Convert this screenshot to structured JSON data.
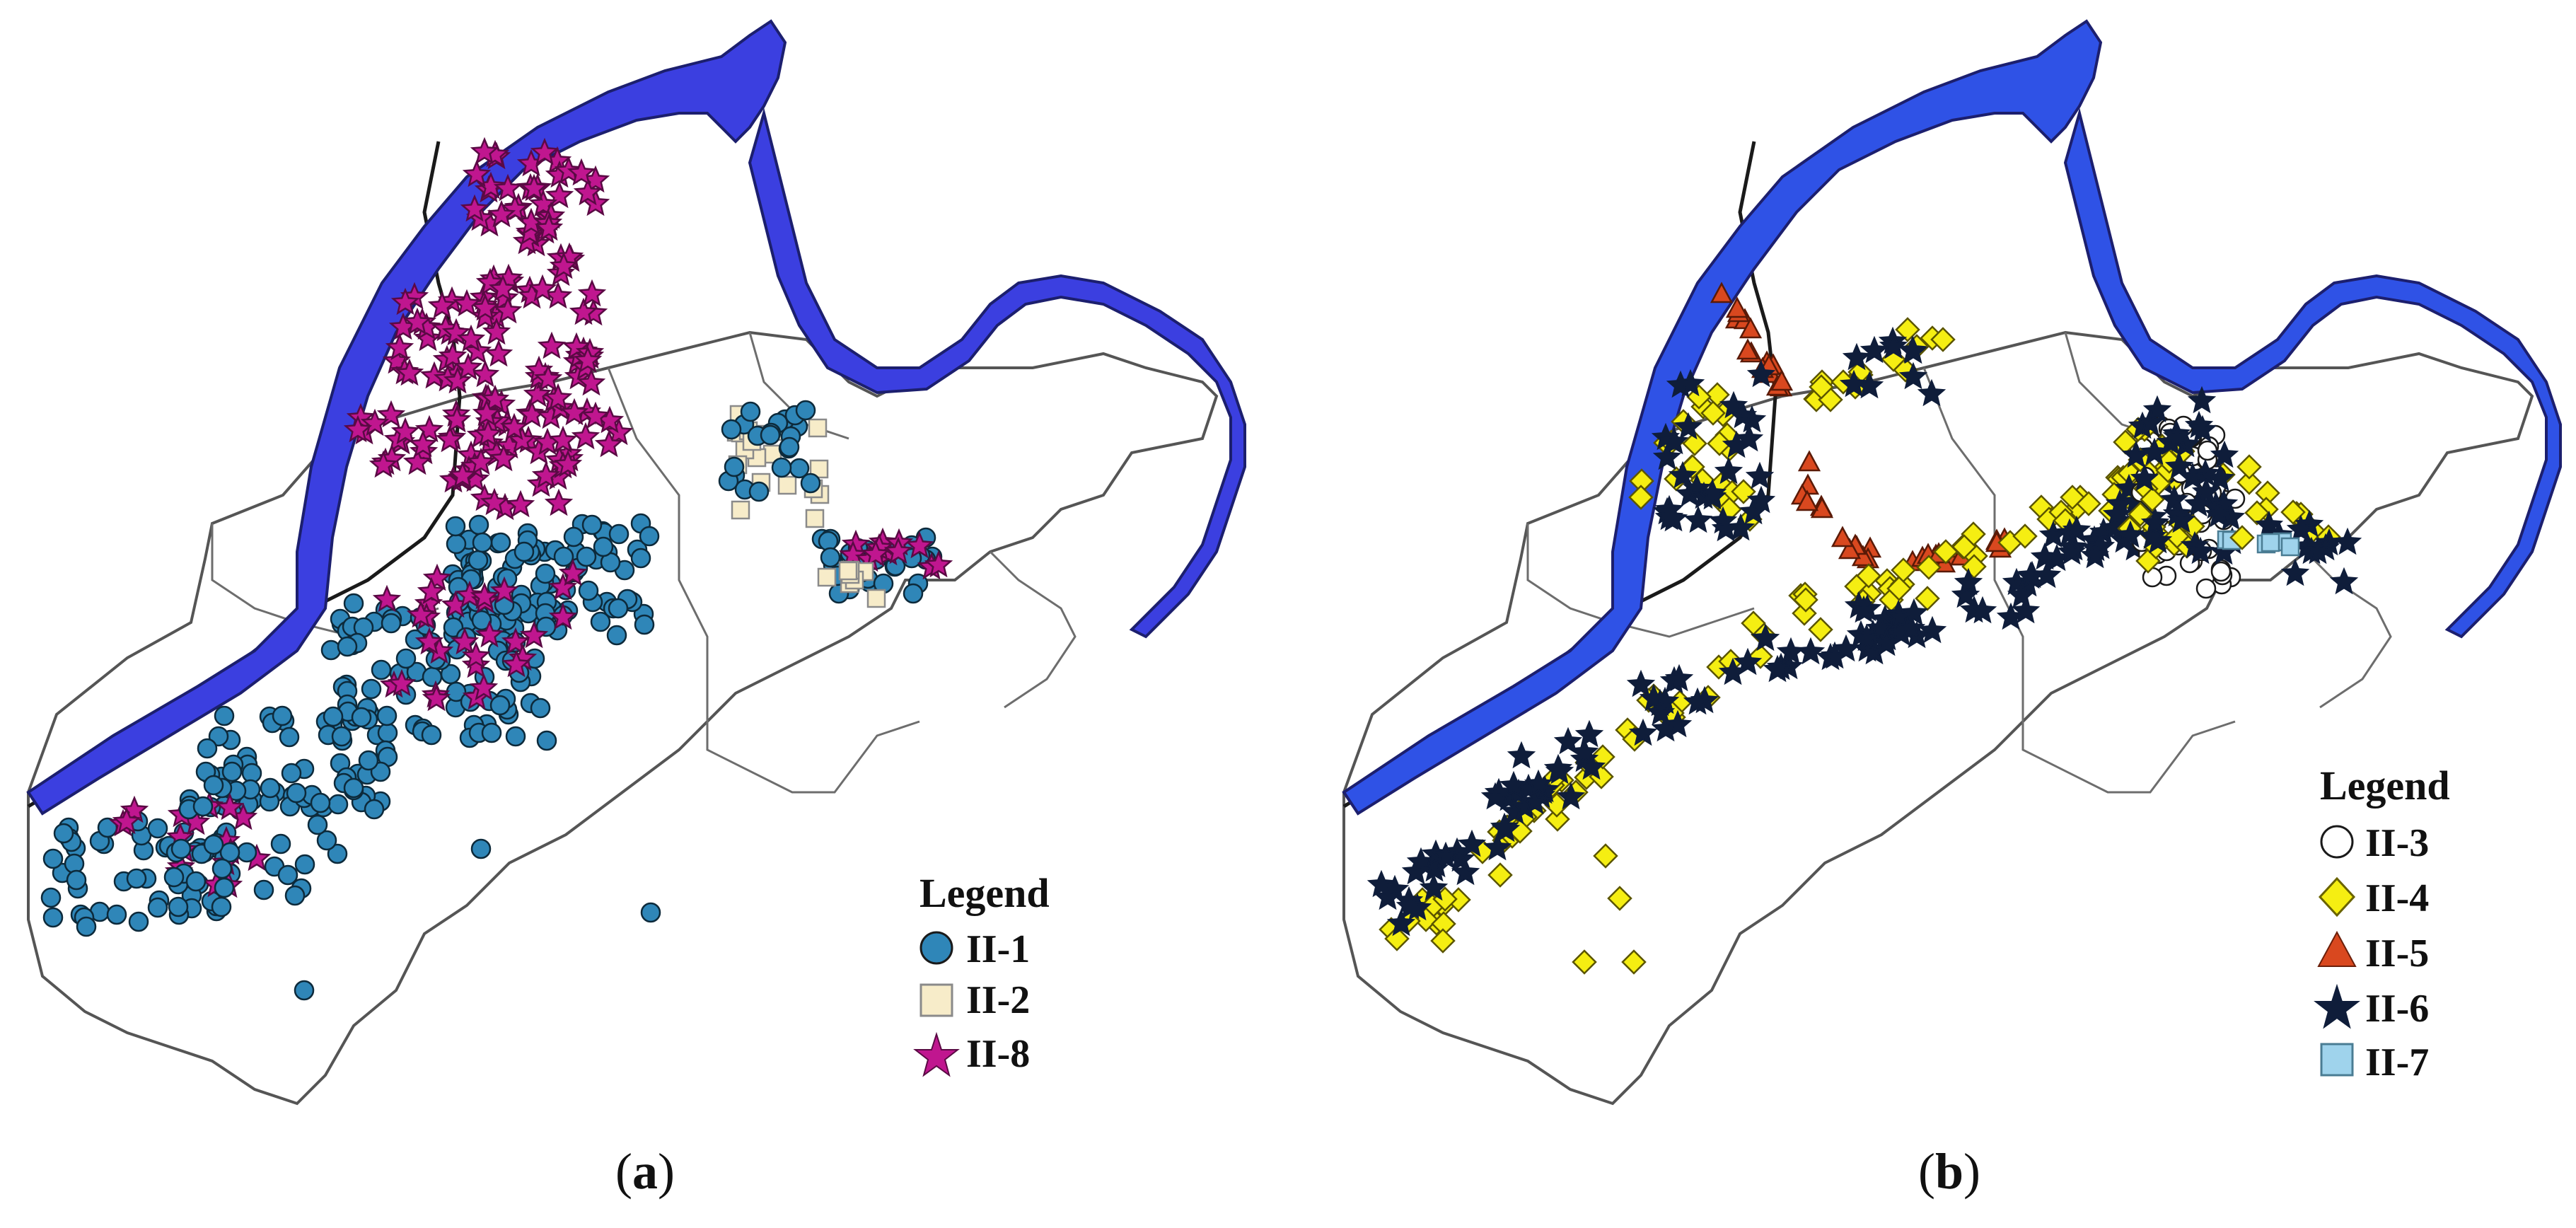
{
  "panels": [
    {
      "id": "a",
      "caption_open": "(",
      "caption_letter": "a",
      "caption_close": ")",
      "legend": {
        "title": "Legend",
        "items": [
          {
            "label": "II-1",
            "symbol": "circle",
            "fill": "#2f86b8"
          },
          {
            "label": "II-2",
            "symbol": "square",
            "fill": "#f7ecc9"
          },
          {
            "label": "II-8",
            "symbol": "star",
            "fill": "#c0168f"
          }
        ]
      }
    },
    {
      "id": "b",
      "caption_open": "(",
      "caption_letter": "b",
      "caption_close": ")",
      "legend": {
        "title": "Legend",
        "items": [
          {
            "label": "II-3",
            "symbol": "circle",
            "fill": "#ffffff"
          },
          {
            "label": "II-4",
            "symbol": "diamond",
            "fill": "#f5ee12"
          },
          {
            "label": "II-5",
            "symbol": "triangle",
            "fill": "#d9481f"
          },
          {
            "label": "II-6",
            "symbol": "star",
            "fill": "#0f1d3a"
          },
          {
            "label": "II-7",
            "symbol": "square",
            "fill": "#9fd3ec"
          }
        ]
      }
    }
  ],
  "colors": {
    "river": "#3b3fe0",
    "river_edge": "#1c1f6e",
    "boundary": "#555555",
    "inner_boundary": "#7a7a7a"
  }
}
